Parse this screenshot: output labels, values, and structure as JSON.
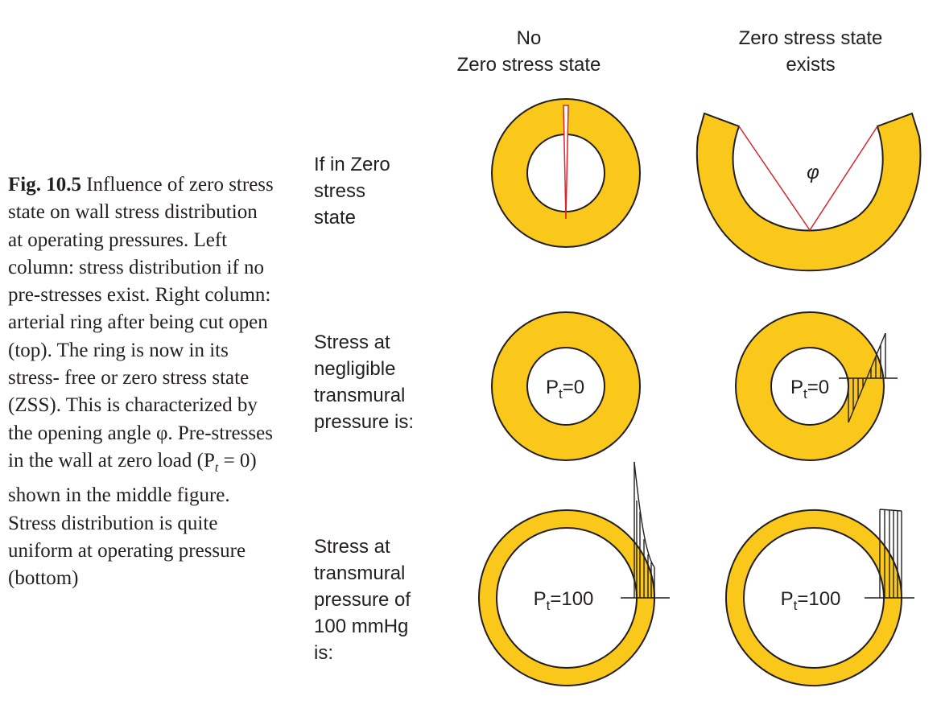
{
  "caption": {
    "label": "Fig. 10.5",
    "text": "Influence of zero stress state on wall stress distribution at operating pressures. Left column: stress distribution if no pre-stresses exist. Right column: arterial ring after being cut open (top). The ring is now in its stress- free or zero stress state (ZSS). This is characterized by the opening angle φ. Pre-stresses in the wall at zero load (P",
    "text_sub": "t",
    "text_tail": " = 0) shown in the middle figure. Stress distribution is quite uniform at operating pressure (bottom)"
  },
  "columns": [
    {
      "line1": "No",
      "line2": "Zero stress state"
    },
    {
      "line1": "Zero stress state",
      "line2": "exists"
    }
  ],
  "rows": [
    {
      "lines": [
        "If in Zero",
        "stress",
        "state"
      ]
    },
    {
      "lines": [
        "Stress at",
        "negligible",
        "transmural",
        "pressure is:"
      ]
    },
    {
      "lines": [
        "Stress at",
        "transmural",
        "pressure of",
        "100 mmHg",
        "is:"
      ]
    }
  ],
  "ring_labels": {
    "p_base": "P",
    "p_sub": "t",
    "zero": "=0",
    "hundred": "=100"
  },
  "angle_symbol": "φ",
  "colors": {
    "ring_fill": "#f9c81a",
    "outline": "#231f20",
    "angle_line": "#d7262b"
  }
}
